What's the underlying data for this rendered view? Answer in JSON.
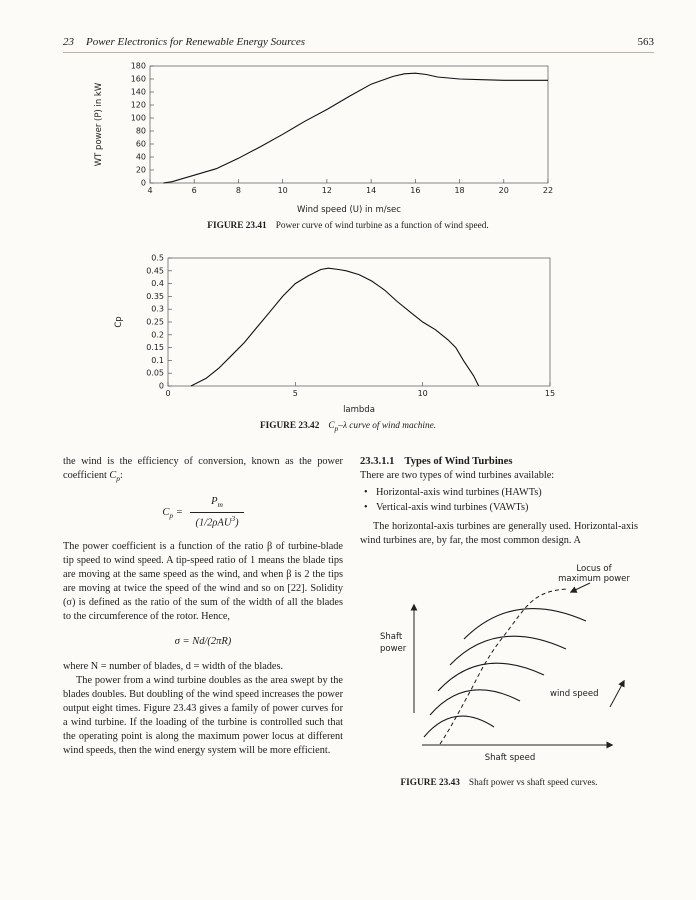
{
  "page": {
    "header_num": "23",
    "header_title": "Power Electronics for Renewable Energy Sources",
    "page_number": "563"
  },
  "chart_data": [
    {
      "name": "power-curve-of-wind-turbine",
      "type": "line",
      "title": "",
      "xlabel": "Wind speed (U) in m/sec",
      "ylabel": "WT power (P) in kW",
      "xlim": [
        4,
        22
      ],
      "ylim": [
        0,
        180
      ],
      "xticks": [
        4,
        6,
        8,
        10,
        12,
        14,
        16,
        18,
        20,
        22
      ],
      "yticks": [
        0,
        20,
        40,
        60,
        80,
        100,
        120,
        140,
        160,
        180
      ],
      "x": [
        4.6,
        5,
        6,
        7,
        8,
        9,
        10,
        11,
        12,
        13,
        14,
        15,
        15.5,
        16,
        16.5,
        17,
        18,
        19,
        20,
        21,
        22
      ],
      "y": [
        0,
        2,
        12,
        22,
        38,
        56,
        75,
        95,
        113,
        133,
        152,
        164,
        168,
        169,
        167,
        163,
        160,
        159,
        158,
        158,
        158
      ]
    },
    {
      "name": "cp-lambda-curve",
      "type": "line",
      "title": "",
      "xlabel": "lambda",
      "ylabel": "Cp",
      "xlim": [
        0,
        15
      ],
      "ylim": [
        0,
        0.5
      ],
      "xticks": [
        0,
        5,
        10,
        15
      ],
      "yticks": [
        0,
        0.05,
        0.1,
        0.15,
        0.2,
        0.25,
        0.3,
        0.35,
        0.4,
        0.45,
        0.5
      ],
      "x": [
        0.9,
        1.5,
        2,
        2.5,
        3,
        3.5,
        4,
        4.5,
        5,
        5.5,
        6,
        6.3,
        6.7,
        7,
        7.5,
        8,
        8.5,
        9,
        9.5,
        10,
        10.5,
        11,
        11.3,
        11.6,
        12,
        12.2
      ],
      "y": [
        0,
        0.03,
        0.07,
        0.12,
        0.17,
        0.23,
        0.29,
        0.35,
        0.4,
        0.43,
        0.455,
        0.46,
        0.455,
        0.45,
        0.435,
        0.41,
        0.375,
        0.33,
        0.29,
        0.25,
        0.22,
        0.18,
        0.15,
        0.1,
        0.04,
        0
      ]
    },
    {
      "name": "shaft-power-vs-shaft-speed",
      "type": "line",
      "title": "Shaft power vs shaft speed curves",
      "xlabel": "Shaft speed",
      "ylabel": "Shaft power",
      "annotations": [
        "Locus of maximum power",
        "wind speed"
      ],
      "note": "Qualitative family of shaft power vs shaft speed curves for increasing wind speed; dashed locus of maximum power passes through the peaks of the curves."
    }
  ],
  "figures": {
    "fig41": {
      "label": "FIGURE 23.41",
      "caption": "Power curve of wind turbine as a function of wind speed."
    },
    "fig42": {
      "label": "FIGURE 23.42",
      "caption_c": "C",
      "caption_sub": "p",
      "caption_rest": "–λ curve of wind machine."
    },
    "fig43": {
      "label": "FIGURE 23.43",
      "caption": "Shaft power vs shaft speed curves.",
      "ylabel_line1": "Shaft",
      "ylabel_line2": "power",
      "xlabel": "Shaft speed",
      "locus_label_line1": "Locus of",
      "locus_label_line2": "maximum power",
      "wind_label": "wind speed"
    }
  },
  "body": {
    "left": {
      "p1_text": "the wind is the efficiency of conversion, known as the power coefficient ",
      "p1_sym": "C",
      "p1_sub": "p",
      "p1_end": ":",
      "formula1": {
        "lhs_c": "C",
        "lhs_sub": "p",
        "eq": " = ",
        "num_p": "P",
        "num_sub": "m",
        "den": "(1/2ρAU",
        "den_sup": "3",
        "den_close": ")"
      },
      "p2": "The power coefficient is a function of the ratio β of turbine-blade tip speed to wind speed. A tip-speed ratio of 1 means the blade tips are moving at the same speed as the wind, and when β is 2 the tips are moving at twice the speed of the wind and so on [22]. Solidity (σ) is defined as the ratio of the sum of the width of all the blades to the circumference of the rotor. Hence,",
      "formula2": "σ = Nd/(2πR)",
      "p3": "where N = number of blades, d = width of the blades.",
      "p4": "The power from a wind turbine doubles as the area swept by the blades doubles. But doubling of the wind speed increases the power output eight times. Figure 23.43 gives a family of power curves for a wind turbine. If the loading of the turbine is controlled such that the operating point is along the maximum power locus at different wind speeds, then the wind energy system will be more efficient."
    },
    "right": {
      "heading_num": "23.3.1.1",
      "heading_text": "Types of Wind Turbines",
      "intro": "There are two types of wind turbines available:",
      "bullets": [
        "Horizontal-axis wind turbines (HAWTs)",
        "Vertical-axis wind turbines (VAWTs)"
      ],
      "p1": "The horizontal-axis turbines are generally used. Horizontal-axis wind turbines are, by far, the most common design. A"
    }
  }
}
